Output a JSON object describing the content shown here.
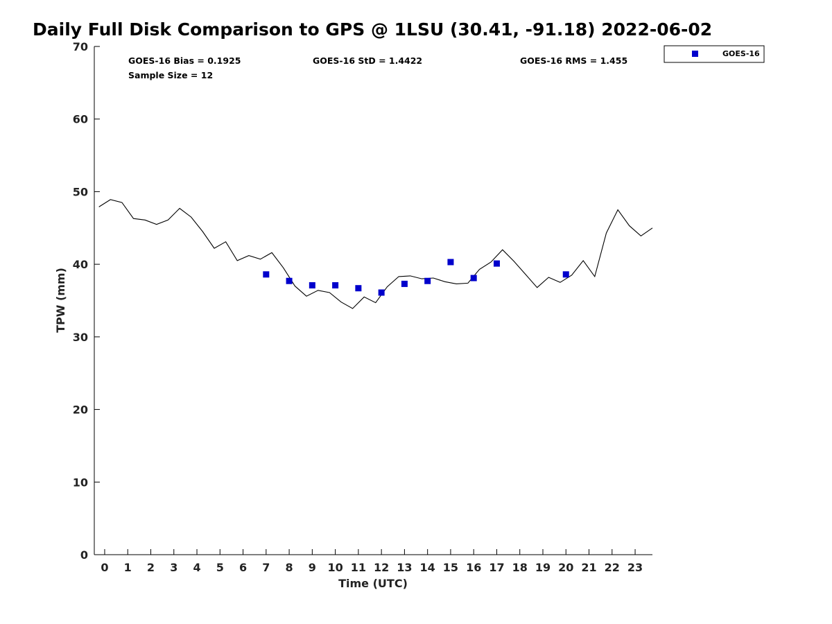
{
  "title": "Daily Full Disk Comparison to GPS @ 1LSU (30.41, -91.18) 2022-06-02",
  "stats": {
    "bias": "GOES-16 Bias = 0.1925",
    "std": "GOES-16 StD = 1.4422",
    "rms": "GOES-16 RMS = 1.455",
    "sample": "Sample Size = 12"
  },
  "chart_data": {
    "type": "scatter",
    "xlabel": "Time (UTC)",
    "ylabel": "TPW (mm)",
    "xlim": [
      -0.45,
      23.75
    ],
    "ylim": [
      0,
      70
    ],
    "xticks": [
      0,
      1,
      2,
      3,
      4,
      5,
      6,
      7,
      8,
      9,
      10,
      11,
      12,
      13,
      14,
      15,
      16,
      17,
      18,
      19,
      20,
      21,
      22,
      23
    ],
    "yticks": [
      0,
      10,
      20,
      30,
      40,
      50,
      60,
      70
    ],
    "grid": false,
    "legend_position": "top-right",
    "series": [
      {
        "kind": "line",
        "color": "#000000",
        "x": [
          -0.25,
          0.25,
          0.75,
          1.25,
          1.75,
          2.25,
          2.75,
          3.25,
          3.75,
          4.25,
          4.75,
          5.25,
          5.75,
          6.25,
          6.75,
          7.25,
          7.75,
          8.25,
          8.75,
          9.25,
          9.75,
          10.25,
          10.75,
          11.25,
          11.75,
          12.25,
          12.75,
          13.25,
          13.75,
          14.25,
          14.75,
          15.25,
          15.75,
          16.25,
          16.75,
          17.25,
          17.75,
          18.25,
          18.75,
          19.25,
          19.75,
          20.25,
          20.75,
          21.25,
          21.75,
          22.25,
          22.75,
          23.25,
          23.75
        ],
        "y": [
          47.9,
          48.9,
          48.5,
          46.3,
          46.1,
          45.5,
          46.1,
          47.7,
          46.5,
          44.5,
          42.2,
          43.1,
          40.5,
          41.2,
          40.7,
          41.6,
          39.5,
          37.0,
          35.6,
          36.4,
          36.1,
          34.8,
          33.9,
          35.5,
          34.7,
          36.9,
          38.3,
          38.4,
          38.0,
          38.1,
          37.6,
          37.3,
          37.4,
          39.3,
          40.3,
          42.0,
          40.4,
          38.6,
          36.8,
          38.2,
          37.5,
          38.5,
          40.5,
          38.3,
          44.3,
          47.5,
          45.3,
          43.9,
          45.0
        ]
      },
      {
        "name": "GOES-16",
        "kind": "scatter",
        "marker": "square",
        "color": "#0000cc",
        "x": [
          7.0,
          8.0,
          9.0,
          10.0,
          11.0,
          12.0,
          13.0,
          14.0,
          15.0,
          16.0,
          17.0,
          20.0
        ],
        "y": [
          38.6,
          37.7,
          37.1,
          37.1,
          36.7,
          36.1,
          37.3,
          37.7,
          40.3,
          38.1,
          40.1,
          38.6
        ]
      }
    ]
  }
}
